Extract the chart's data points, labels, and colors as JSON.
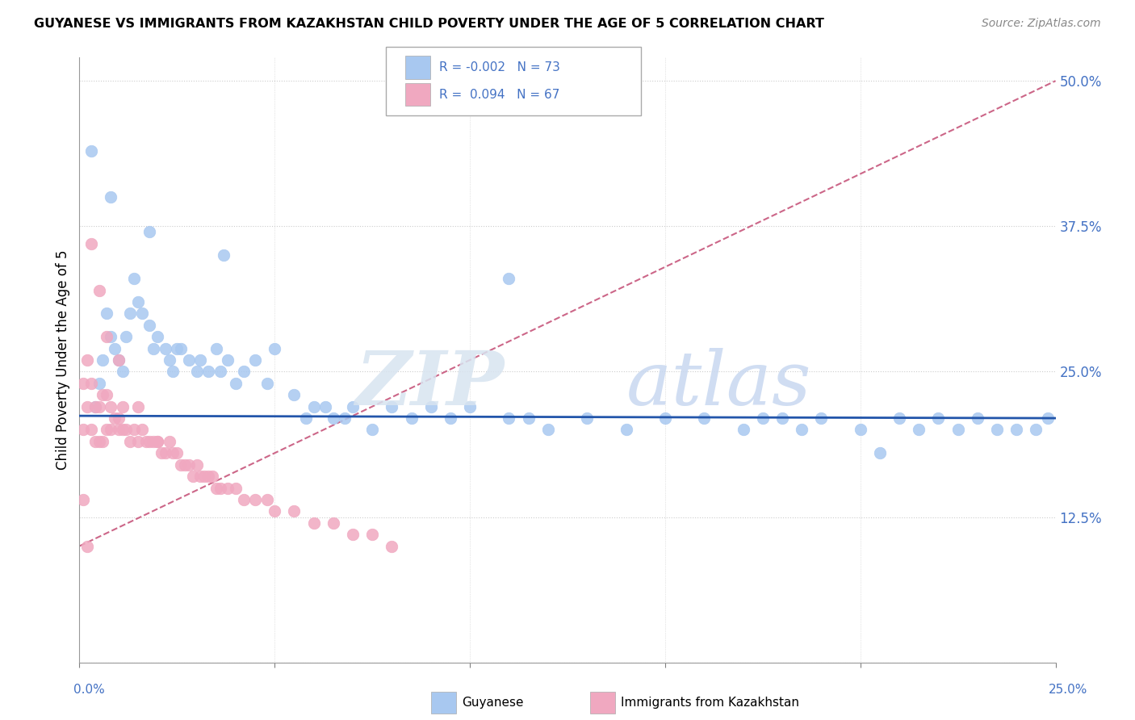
{
  "title": "GUYANESE VS IMMIGRANTS FROM KAZAKHSTAN CHILD POVERTY UNDER THE AGE OF 5 CORRELATION CHART",
  "source": "Source: ZipAtlas.com",
  "ylabel": "Child Poverty Under the Age of 5",
  "yticks": [
    0.0,
    0.125,
    0.25,
    0.375,
    0.5
  ],
  "ytick_labels": [
    "",
    "12.5%",
    "25.0%",
    "37.5%",
    "50.0%"
  ],
  "xlim": [
    0.0,
    0.25
  ],
  "ylim": [
    0.0,
    0.52
  ],
  "color_blue": "#a8c8f0",
  "color_pink": "#f0a8c0",
  "color_trendline_blue": "#2255aa",
  "color_trendline_pink": "#cc6688",
  "legend_label1": "Guyanese",
  "legend_label2": "Immigrants from Kazakhstan",
  "blue_x": [
    0.004,
    0.005,
    0.006,
    0.007,
    0.008,
    0.009,
    0.01,
    0.011,
    0.012,
    0.013,
    0.014,
    0.015,
    0.016,
    0.018,
    0.019,
    0.02,
    0.022,
    0.023,
    0.024,
    0.025,
    0.026,
    0.028,
    0.03,
    0.031,
    0.033,
    0.035,
    0.036,
    0.038,
    0.04,
    0.042,
    0.045,
    0.048,
    0.05,
    0.055,
    0.058,
    0.06,
    0.063,
    0.065,
    0.068,
    0.07,
    0.075,
    0.08,
    0.085,
    0.09,
    0.095,
    0.1,
    0.11,
    0.115,
    0.12,
    0.13,
    0.14,
    0.15,
    0.16,
    0.17,
    0.175,
    0.18,
    0.185,
    0.19,
    0.2,
    0.21,
    0.215,
    0.22,
    0.225,
    0.23,
    0.235,
    0.24,
    0.245,
    0.248,
    0.003,
    0.008,
    0.018,
    0.037,
    0.11,
    0.205
  ],
  "blue_y": [
    0.22,
    0.24,
    0.26,
    0.3,
    0.28,
    0.27,
    0.26,
    0.25,
    0.28,
    0.3,
    0.33,
    0.31,
    0.3,
    0.29,
    0.27,
    0.28,
    0.27,
    0.26,
    0.25,
    0.27,
    0.27,
    0.26,
    0.25,
    0.26,
    0.25,
    0.27,
    0.25,
    0.26,
    0.24,
    0.25,
    0.26,
    0.24,
    0.27,
    0.23,
    0.21,
    0.22,
    0.22,
    0.21,
    0.21,
    0.22,
    0.2,
    0.22,
    0.21,
    0.22,
    0.21,
    0.22,
    0.21,
    0.21,
    0.2,
    0.21,
    0.2,
    0.21,
    0.21,
    0.2,
    0.21,
    0.21,
    0.2,
    0.21,
    0.2,
    0.21,
    0.2,
    0.21,
    0.2,
    0.21,
    0.2,
    0.2,
    0.2,
    0.21,
    0.44,
    0.4,
    0.37,
    0.35,
    0.33,
    0.18
  ],
  "pink_x": [
    0.001,
    0.001,
    0.002,
    0.002,
    0.003,
    0.003,
    0.004,
    0.004,
    0.005,
    0.005,
    0.006,
    0.006,
    0.007,
    0.007,
    0.008,
    0.008,
    0.009,
    0.01,
    0.01,
    0.011,
    0.011,
    0.012,
    0.013,
    0.014,
    0.015,
    0.016,
    0.017,
    0.018,
    0.019,
    0.02,
    0.021,
    0.022,
    0.023,
    0.024,
    0.025,
    0.026,
    0.027,
    0.028,
    0.029,
    0.03,
    0.031,
    0.032,
    0.033,
    0.034,
    0.035,
    0.036,
    0.038,
    0.04,
    0.042,
    0.045,
    0.048,
    0.05,
    0.055,
    0.06,
    0.065,
    0.07,
    0.075,
    0.08,
    0.003,
    0.005,
    0.007,
    0.01,
    0.015,
    0.02,
    0.001,
    0.002
  ],
  "pink_y": [
    0.2,
    0.24,
    0.22,
    0.26,
    0.2,
    0.24,
    0.19,
    0.22,
    0.19,
    0.22,
    0.19,
    0.23,
    0.2,
    0.23,
    0.2,
    0.22,
    0.21,
    0.2,
    0.21,
    0.2,
    0.22,
    0.2,
    0.19,
    0.2,
    0.19,
    0.2,
    0.19,
    0.19,
    0.19,
    0.19,
    0.18,
    0.18,
    0.19,
    0.18,
    0.18,
    0.17,
    0.17,
    0.17,
    0.16,
    0.17,
    0.16,
    0.16,
    0.16,
    0.16,
    0.15,
    0.15,
    0.15,
    0.15,
    0.14,
    0.14,
    0.14,
    0.13,
    0.13,
    0.12,
    0.12,
    0.11,
    0.11,
    0.1,
    0.36,
    0.32,
    0.28,
    0.26,
    0.22,
    0.19,
    0.14,
    0.1
  ],
  "blue_trend_x": [
    0.0,
    0.25
  ],
  "blue_trend_y": [
    0.212,
    0.21
  ],
  "pink_trend_x": [
    0.0,
    0.25
  ],
  "pink_trend_y": [
    0.1,
    0.5
  ]
}
